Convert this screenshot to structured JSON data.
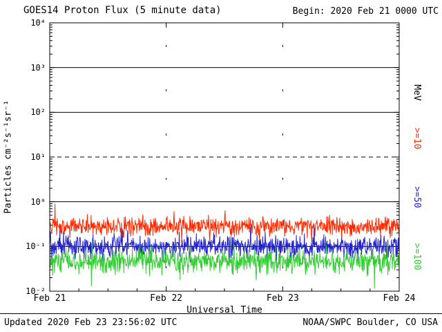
{
  "footer": {
    "updated": "Updated 2020 Feb 23 23:56:02 UTC",
    "source": "NOAA/SWPC Boulder, CO USA"
  },
  "chart_data": {
    "type": "line",
    "title": "GOES14 Proton Flux (5 minute data)",
    "begin_label": "Begin: 2020 Feb 21 0000 UTC",
    "xlabel": "Universal Time",
    "ylabel": "Particles cm⁻²s⁻¹sr⁻¹",
    "x_ticks": [
      "Feb 21",
      "Feb 22",
      "Feb 23",
      "Feb 24"
    ],
    "y_tick_labels": [
      "10⁴",
      "10³",
      "10²",
      "10¹",
      "10⁰",
      "10⁻¹",
      "10⁻²"
    ],
    "y_tick_exponents": [
      4,
      3,
      2,
      1,
      0,
      -1,
      -2
    ],
    "y_scale": "log",
    "ylim": [
      0.01,
      10000
    ],
    "x_range_days": 3,
    "points_per_day": 288,
    "seed": 20200221,
    "grid": {
      "solid_horizontal_exponents": [
        3,
        2,
        0,
        -1
      ],
      "dashed_horizontal_exponents": [
        1
      ],
      "dotted_vertical_day_indices": [
        1,
        2
      ]
    },
    "right_axis_labels": [
      {
        "text": "MeV",
        "color": "#000000"
      },
      {
        "text": ">=10",
        "color": "#ff2a00"
      },
      {
        "text": ">=50",
        "color": "#2222cc"
      },
      {
        "text": ">=100",
        "color": "#33cc33"
      }
    ],
    "series": [
      {
        "name": ">=10 MeV",
        "color": "#ff2a00",
        "median_flux": 0.28,
        "log_sigma": 0.1,
        "spike_prob": 0.02,
        "spike_log": 0.2,
        "approx_range": [
          0.15,
          0.55
        ]
      },
      {
        "name": ">=50 MeV",
        "color": "#2222cc",
        "median_flux": 0.1,
        "log_sigma": 0.12,
        "spike_prob": 0.02,
        "spike_log": 0.18,
        "approx_range": [
          0.05,
          0.2
        ]
      },
      {
        "name": ">=100 MeV",
        "color": "#33cc33",
        "median_flux": 0.047,
        "log_sigma": 0.13,
        "spike_prob": 0.03,
        "spike_log": 0.16,
        "approx_range": [
          0.03,
          0.09
        ]
      }
    ]
  }
}
